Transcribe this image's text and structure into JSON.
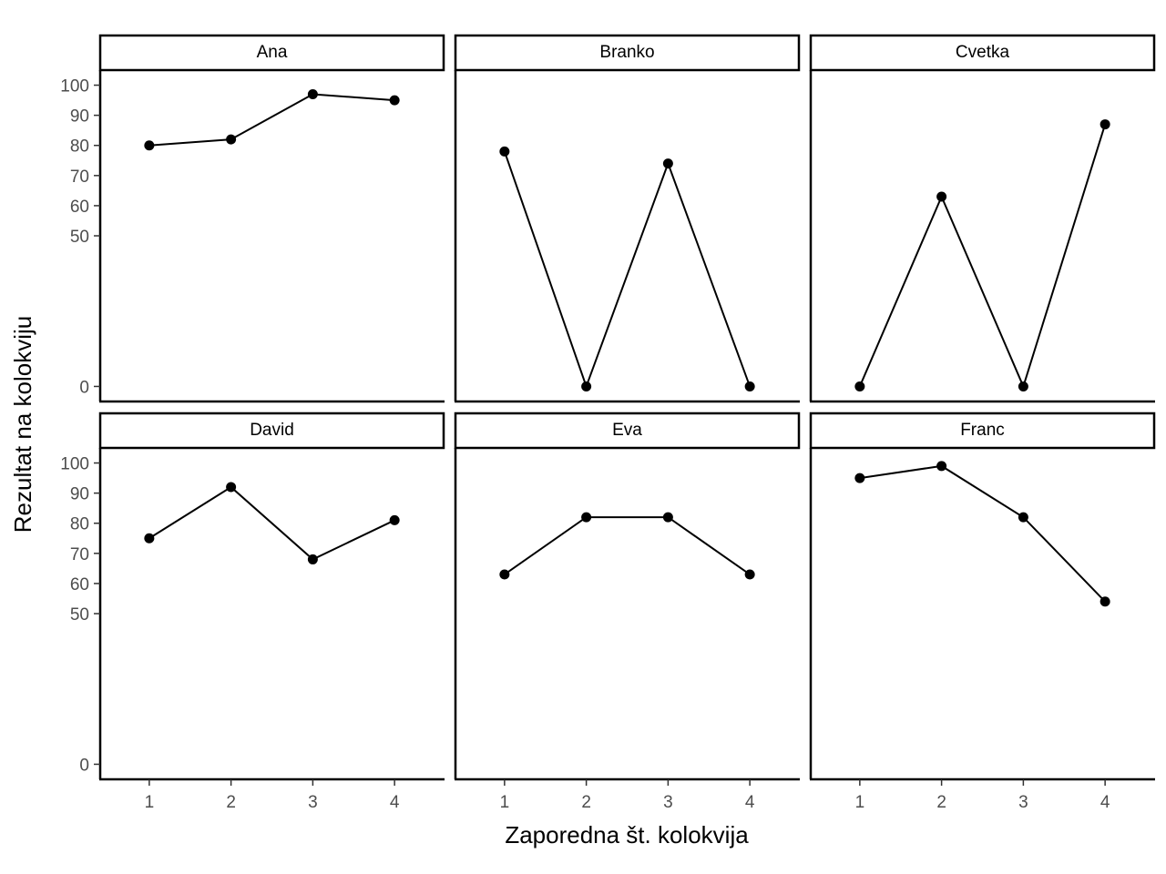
{
  "chart_data": {
    "type": "line",
    "xlabel": "Zaporedna št. kolokvija",
    "ylabel": "Rezultat na kolokviju",
    "x": [
      1,
      2,
      3,
      4
    ],
    "x_ticks": [
      "1",
      "2",
      "3",
      "4"
    ],
    "xlim": [
      0.4,
      4.6
    ],
    "y_ticks": [
      0,
      50,
      60,
      70,
      80,
      90,
      100
    ],
    "ylim": [
      -5,
      105
    ],
    "grid": false,
    "legend": "none",
    "line_color": "#000000",
    "point_color": "#000000",
    "facets": [
      {
        "name": "Ana",
        "values": [
          80,
          82,
          97,
          95
        ]
      },
      {
        "name": "Branko",
        "values": [
          78,
          0,
          74,
          0
        ]
      },
      {
        "name": "Cvetka",
        "values": [
          0,
          63,
          0,
          87
        ]
      },
      {
        "name": "David",
        "values": [
          75,
          92,
          68,
          81
        ]
      },
      {
        "name": "Eva",
        "values": [
          63,
          82,
          82,
          63
        ]
      },
      {
        "name": "Franc",
        "values": [
          95,
          99,
          82,
          54
        ]
      }
    ]
  }
}
